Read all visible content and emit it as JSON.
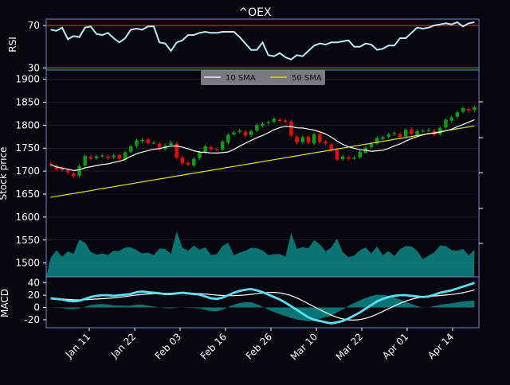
{
  "chart_data": [
    {
      "type": "line",
      "panel": "rsi",
      "title": "^OEX",
      "ylabel": "RSI",
      "ylim": [
        28,
        76
      ],
      "yticks": [
        30,
        70
      ],
      "overbought": 70,
      "oversold": 30,
      "colors": {
        "line": "#b8ecf4",
        "overbought": "#a3291f",
        "oversold": "#2f8a2f",
        "axis": "#6f86d6"
      },
      "values": [
        66,
        65,
        68,
        57,
        60,
        59,
        68,
        69,
        62,
        61,
        63,
        58,
        54,
        58,
        66,
        67,
        66,
        69,
        69,
        54,
        53,
        46,
        54,
        56,
        61,
        61,
        63,
        64,
        63,
        63,
        64,
        64,
        64,
        59,
        53,
        47,
        47,
        54,
        42,
        41,
        44,
        40,
        38,
        42,
        41,
        46,
        51,
        53,
        52,
        54,
        54,
        55,
        56,
        50,
        50,
        53,
        52,
        47,
        48,
        51,
        51,
        58,
        58,
        63,
        68,
        67,
        68,
        70,
        71,
        72,
        71,
        73,
        69,
        72,
        73
      ]
    },
    {
      "type": "candlestick",
      "panel": "price",
      "ylabel": "Stock price",
      "ylim": [
        1470,
        1920
      ],
      "yticks": [
        1500,
        1550,
        1600,
        1650,
        1700,
        1750,
        1800,
        1850,
        1900
      ],
      "grid": true,
      "legend": {
        "placement": "top-center",
        "entries": [
          "10 SMA",
          "50 SMA"
        ]
      },
      "colors": {
        "up": "#0e9c16",
        "down": "#e01010",
        "sma10": "#ffffff",
        "sma50": "#e2e21a",
        "volume": "#0d8f8c"
      },
      "x": [
        "Jan 03",
        "Jan 04",
        "Jan 05",
        "Jan 06",
        "Jan 07",
        "Jan 08",
        "Jan 09",
        "Jan 10",
        "Jan 11",
        "Jan 12",
        "Jan 13",
        "Jan 14",
        "Jan 15",
        "Jan 16",
        "Jan 17",
        "Jan 18",
        "Jan 19",
        "Jan 20",
        "Jan 21",
        "Jan 22",
        "Jan 23",
        "Jan 24",
        "Jan 25",
        "Jan 26",
        "Jan 27",
        "Jan 28",
        "Jan 29",
        "Jan 30",
        "Jan 31",
        "Feb 01",
        "Feb 02",
        "Feb 03",
        "Feb 04",
        "Feb 05",
        "Feb 06",
        "Feb 07",
        "Feb 08",
        "Feb 09",
        "Feb 10",
        "Feb 11",
        "Feb 12",
        "Feb 13",
        "Feb 14",
        "Feb 15",
        "Feb 16",
        "Feb 17",
        "Feb 18",
        "Feb 19",
        "Feb 20",
        "Feb 21",
        "Feb 22",
        "Feb 23",
        "Feb 24",
        "Feb 25",
        "Feb 26",
        "Feb 27",
        "Feb 28",
        "Mar 01",
        "Mar 02",
        "Mar 03",
        "Mar 04",
        "Mar 05",
        "Mar 06",
        "Mar 07",
        "Mar 08",
        "Mar 09",
        "Mar 10",
        "Mar 11",
        "Mar 12",
        "Mar 13",
        "Mar 14",
        "Mar 15",
        "Mar 16",
        "Mar 17",
        "Mar 18"
      ],
      "open": [
        1716,
        1712,
        1705,
        1703,
        1695,
        1690,
        1712,
        1731,
        1728,
        1733,
        1732,
        1730,
        1735,
        1725,
        1742,
        1755,
        1765,
        1769,
        1762,
        1760,
        1748,
        1757,
        1760,
        1730,
        1718,
        1712,
        1728,
        1742,
        1752,
        1748,
        1747,
        1762,
        1780,
        1785,
        1786,
        1778,
        1788,
        1798,
        1804,
        1807,
        1812,
        1810,
        1808,
        1775,
        1763,
        1775,
        1760,
        1781,
        1764,
        1758,
        1746,
        1726,
        1730,
        1728,
        1730,
        1740,
        1752,
        1760,
        1770,
        1775,
        1781,
        1781,
        1775,
        1791,
        1779,
        1788,
        1789,
        1788,
        1780,
        1795,
        1810,
        1818,
        1829,
        1835,
        1833
      ]
    },
    {
      "type": "line",
      "panel": "macd",
      "ylabel": "MACD",
      "ylim": [
        -33,
        50
      ],
      "yticks": [
        -20,
        0,
        20,
        40
      ],
      "colors": {
        "macd": "#5ae0f5",
        "signal": "#ffffff",
        "hist": "#0a8a86"
      },
      "macd": [
        15,
        14,
        13,
        11,
        10,
        11,
        14,
        17,
        19,
        20,
        20,
        19,
        20,
        21,
        22,
        25,
        26,
        25,
        24,
        23,
        22,
        22,
        23,
        24,
        23,
        22,
        21,
        18,
        15,
        14,
        16,
        20,
        24,
        27,
        29,
        30,
        28,
        25,
        21,
        17,
        13,
        8,
        2,
        -4,
        -10,
        -16,
        -20,
        -22,
        -24,
        -26,
        -24,
        -22,
        -18,
        -13,
        -8,
        -2,
        4,
        10,
        14,
        17,
        19,
        20,
        20,
        19,
        18,
        17,
        18,
        21,
        24,
        26,
        28,
        31,
        34,
        37,
        40
      ]
    }
  ],
  "x_axis": {
    "ticks": [
      "Jan 11",
      "Jan 22",
      "Feb 03",
      "Feb 16",
      "Feb 26",
      "Mar 10",
      "Mar 22",
      "Apr 01",
      "Apr 14"
    ]
  }
}
